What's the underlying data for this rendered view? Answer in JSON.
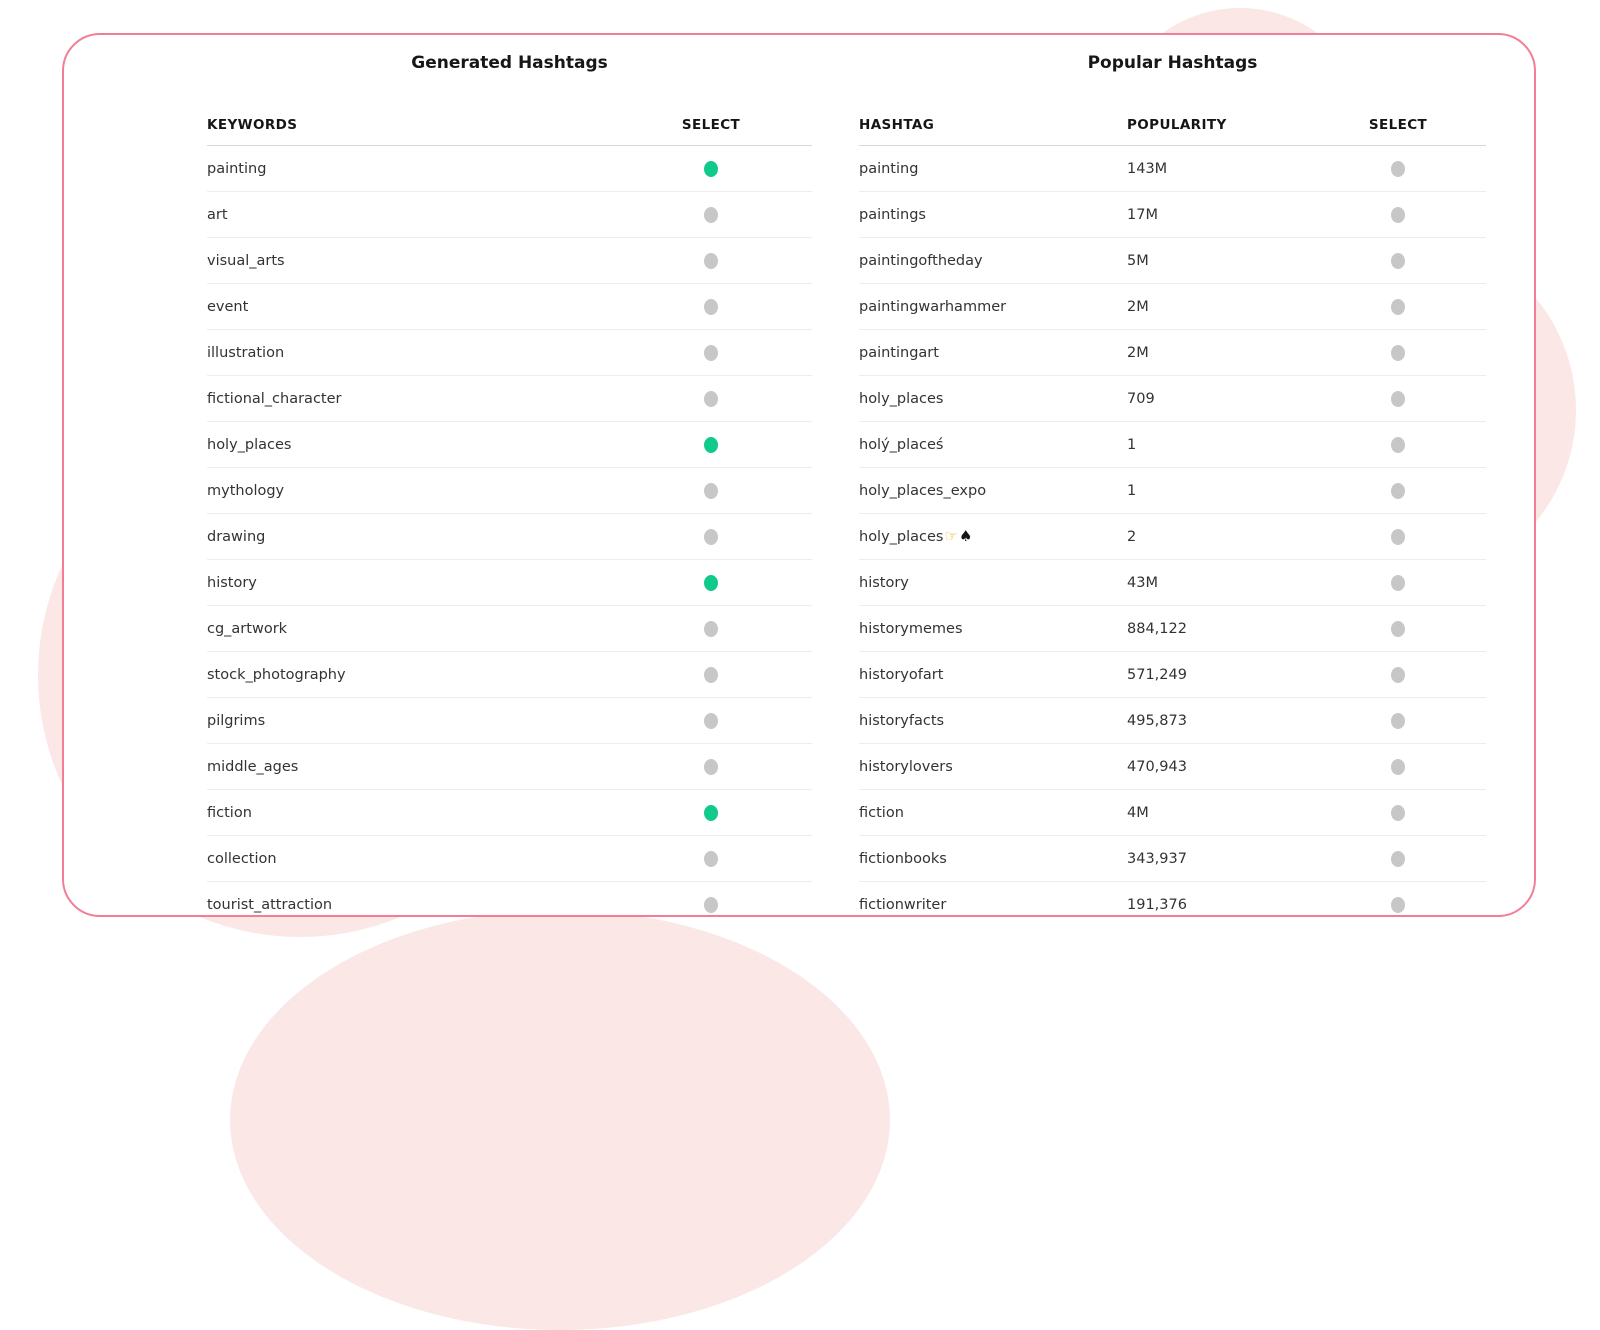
{
  "theme": {
    "card_border_pink": "#f27e96",
    "background_blob_pink": "#fbe8e6",
    "selected_dot_green": "#10c98b",
    "unselected_dot_gray": "#c7c7c7"
  },
  "generated": {
    "title": "Generated Hashtags",
    "columns": {
      "keyword": "KEYWORDS",
      "select": "SELECT"
    },
    "rows": [
      {
        "keyword": "painting",
        "selected": true
      },
      {
        "keyword": "art",
        "selected": false
      },
      {
        "keyword": "visual_arts",
        "selected": false
      },
      {
        "keyword": "event",
        "selected": false
      },
      {
        "keyword": "illustration",
        "selected": false
      },
      {
        "keyword": "fictional_character",
        "selected": false
      },
      {
        "keyword": "holy_places",
        "selected": true
      },
      {
        "keyword": "mythology",
        "selected": false
      },
      {
        "keyword": "drawing",
        "selected": false
      },
      {
        "keyword": "history",
        "selected": true
      },
      {
        "keyword": "cg_artwork",
        "selected": false
      },
      {
        "keyword": "stock_photography",
        "selected": false
      },
      {
        "keyword": "pilgrims",
        "selected": false
      },
      {
        "keyword": "middle_ages",
        "selected": false
      },
      {
        "keyword": "fiction",
        "selected": true
      },
      {
        "keyword": "collection",
        "selected": false
      },
      {
        "keyword": "tourist_attraction",
        "selected": false
      }
    ]
  },
  "popular": {
    "title": "Popular Hashtags",
    "columns": {
      "hashtag": "HASHTAG",
      "popularity": "POPULARITY",
      "select": "SELECT"
    },
    "rows": [
      {
        "hashtag": "painting",
        "popularity": "143M",
        "selected": false
      },
      {
        "hashtag": "paintings",
        "popularity": "17M",
        "selected": false
      },
      {
        "hashtag": "paintingoftheday",
        "popularity": "5M",
        "selected": false
      },
      {
        "hashtag": "paintingwarhammer",
        "popularity": "2M",
        "selected": false
      },
      {
        "hashtag": "paintingart",
        "popularity": "2M",
        "selected": false
      },
      {
        "hashtag": "holy_places",
        "popularity": "709",
        "selected": false
      },
      {
        "hashtag": "holý_placeś",
        "popularity": "1",
        "selected": false
      },
      {
        "hashtag": "holy_places_expo",
        "popularity": "1",
        "selected": false
      },
      {
        "hashtag": "holy_places",
        "popularity": "2",
        "selected": false,
        "icons": [
          {
            "name": "pointing-hand-icon",
            "glyph": "☞",
            "color": "#f2b62d"
          },
          {
            "name": "spade-icon",
            "glyph": "♠",
            "color": "#141414"
          }
        ]
      },
      {
        "hashtag": "history",
        "popularity": "43M",
        "selected": false
      },
      {
        "hashtag": "historymemes",
        "popularity": "884,122",
        "selected": false
      },
      {
        "hashtag": "historyofart",
        "popularity": "571,249",
        "selected": false
      },
      {
        "hashtag": "historyfacts",
        "popularity": "495,873",
        "selected": false
      },
      {
        "hashtag": "historylovers",
        "popularity": "470,943",
        "selected": false
      },
      {
        "hashtag": "fiction",
        "popularity": "4M",
        "selected": false
      },
      {
        "hashtag": "fictionbooks",
        "popularity": "343,937",
        "selected": false
      },
      {
        "hashtag": "fictionwriter",
        "popularity": "191,376",
        "selected": false
      }
    ]
  }
}
